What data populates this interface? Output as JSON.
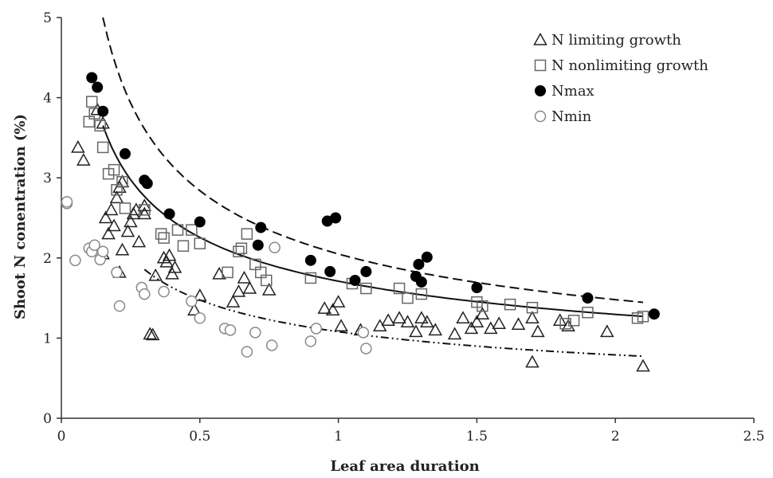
{
  "chart_data": {
    "type": "scatter",
    "title": "",
    "xlabel": "Leaf area duration",
    "ylabel": "Shoot N conentration (%)",
    "xlim": [
      0,
      2.5
    ],
    "ylim": [
      0,
      5
    ],
    "xticks": [
      0,
      0.5,
      1,
      1.5,
      2,
      2.5
    ],
    "xtick_labels": [
      "0",
      "0.5",
      "1",
      "1.5",
      "2",
      "2.5"
    ],
    "yticks": [
      0,
      1,
      2,
      3,
      4,
      5
    ],
    "ytick_labels": [
      "0",
      "1",
      "2",
      "3",
      "4",
      "5"
    ],
    "grid": false,
    "legend_position": "top-right",
    "series": [
      {
        "name": "N limiting growth",
        "marker": "triangle",
        "color": "#222222",
        "points": [
          [
            0.06,
            3.38
          ],
          [
            0.08,
            3.22
          ],
          [
            0.13,
            3.85
          ],
          [
            0.15,
            3.68
          ],
          [
            0.15,
            2.05
          ],
          [
            0.16,
            2.5
          ],
          [
            0.17,
            2.3
          ],
          [
            0.18,
            2.6
          ],
          [
            0.19,
            2.4
          ],
          [
            0.2,
            2.75
          ],
          [
            0.21,
            2.88
          ],
          [
            0.22,
            2.95
          ],
          [
            0.21,
            1.82
          ],
          [
            0.22,
            2.1
          ],
          [
            0.24,
            2.33
          ],
          [
            0.25,
            2.45
          ],
          [
            0.26,
            2.55
          ],
          [
            0.27,
            2.6
          ],
          [
            0.28,
            2.2
          ],
          [
            0.3,
            2.65
          ],
          [
            0.3,
            2.55
          ],
          [
            0.32,
            1.05
          ],
          [
            0.33,
            1.04
          ],
          [
            0.34,
            1.78
          ],
          [
            0.37,
            2.0
          ],
          [
            0.38,
            1.95
          ],
          [
            0.39,
            2.03
          ],
          [
            0.4,
            1.8
          ],
          [
            0.41,
            1.88
          ],
          [
            0.5,
            1.53
          ],
          [
            0.48,
            1.35
          ],
          [
            0.57,
            1.8
          ],
          [
            0.62,
            1.45
          ],
          [
            0.64,
            1.58
          ],
          [
            0.66,
            1.75
          ],
          [
            0.68,
            1.62
          ],
          [
            0.75,
            1.6
          ],
          [
            0.95,
            1.37
          ],
          [
            0.98,
            1.35
          ],
          [
            1.0,
            1.45
          ],
          [
            1.01,
            1.15
          ],
          [
            1.08,
            1.1
          ],
          [
            1.15,
            1.15
          ],
          [
            1.18,
            1.22
          ],
          [
            1.22,
            1.25
          ],
          [
            1.25,
            1.2
          ],
          [
            1.28,
            1.08
          ],
          [
            1.3,
            1.25
          ],
          [
            1.32,
            1.2
          ],
          [
            1.35,
            1.1
          ],
          [
            1.42,
            1.05
          ],
          [
            1.45,
            1.25
          ],
          [
            1.48,
            1.12
          ],
          [
            1.5,
            1.2
          ],
          [
            1.52,
            1.3
          ],
          [
            1.55,
            1.12
          ],
          [
            1.58,
            1.18
          ],
          [
            1.65,
            1.17
          ],
          [
            1.7,
            1.25
          ],
          [
            1.72,
            1.08
          ],
          [
            1.8,
            1.22
          ],
          [
            1.83,
            1.15
          ],
          [
            1.97,
            1.08
          ],
          [
            1.7,
            0.7
          ],
          [
            2.1,
            0.65
          ]
        ]
      },
      {
        "name": "N nonlimiting growth",
        "marker": "square",
        "color": "#666666",
        "points": [
          [
            0.1,
            3.7
          ],
          [
            0.11,
            3.95
          ],
          [
            0.12,
            3.8
          ],
          [
            0.14,
            3.65
          ],
          [
            0.15,
            3.38
          ],
          [
            0.17,
            3.05
          ],
          [
            0.19,
            3.1
          ],
          [
            0.2,
            2.85
          ],
          [
            0.22,
            2.95
          ],
          [
            0.23,
            2.62
          ],
          [
            0.3,
            2.6
          ],
          [
            0.36,
            2.3
          ],
          [
            0.37,
            2.25
          ],
          [
            0.42,
            2.35
          ],
          [
            0.44,
            2.15
          ],
          [
            0.47,
            2.35
          ],
          [
            0.5,
            2.18
          ],
          [
            0.6,
            1.82
          ],
          [
            0.64,
            2.08
          ],
          [
            0.65,
            2.12
          ],
          [
            0.67,
            2.3
          ],
          [
            0.7,
            1.92
          ],
          [
            0.72,
            1.82
          ],
          [
            0.74,
            1.72
          ],
          [
            0.9,
            1.75
          ],
          [
            1.05,
            1.68
          ],
          [
            1.1,
            1.62
          ],
          [
            1.22,
            1.62
          ],
          [
            1.25,
            1.5
          ],
          [
            1.3,
            1.55
          ],
          [
            1.5,
            1.45
          ],
          [
            1.52,
            1.4
          ],
          [
            1.62,
            1.42
          ],
          [
            1.7,
            1.38
          ],
          [
            1.82,
            1.18
          ],
          [
            1.85,
            1.22
          ],
          [
            1.9,
            1.32
          ],
          [
            2.08,
            1.25
          ],
          [
            2.1,
            1.27
          ]
        ]
      },
      {
        "name": "Nmax",
        "marker": "filled-circle",
        "color": "#000000",
        "points": [
          [
            0.11,
            4.25
          ],
          [
            0.13,
            4.13
          ],
          [
            0.15,
            3.83
          ],
          [
            0.23,
            3.3
          ],
          [
            0.3,
            2.97
          ],
          [
            0.31,
            2.93
          ],
          [
            0.39,
            2.55
          ],
          [
            0.5,
            2.45
          ],
          [
            0.71,
            2.16
          ],
          [
            0.72,
            2.38
          ],
          [
            0.9,
            1.97
          ],
          [
            0.96,
            2.46
          ],
          [
            0.97,
            1.83
          ],
          [
            0.99,
            2.5
          ],
          [
            1.06,
            1.72
          ],
          [
            1.1,
            1.83
          ],
          [
            1.28,
            1.77
          ],
          [
            1.29,
            1.92
          ],
          [
            1.3,
            1.7
          ],
          [
            1.32,
            2.01
          ],
          [
            1.5,
            1.63
          ],
          [
            1.9,
            1.5
          ],
          [
            2.14,
            1.3
          ]
        ]
      },
      {
        "name": "Nmin",
        "marker": "open-circle",
        "color": "#888888",
        "points": [
          [
            0.02,
            2.68
          ],
          [
            0.02,
            2.7
          ],
          [
            0.05,
            1.97
          ],
          [
            0.1,
            2.12
          ],
          [
            0.11,
            2.08
          ],
          [
            0.12,
            2.16
          ],
          [
            0.14,
            1.98
          ],
          [
            0.15,
            2.08
          ],
          [
            0.2,
            1.82
          ],
          [
            0.21,
            1.4
          ],
          [
            0.29,
            1.63
          ],
          [
            0.3,
            1.55
          ],
          [
            0.37,
            1.58
          ],
          [
            0.47,
            1.46
          ],
          [
            0.5,
            1.25
          ],
          [
            0.59,
            1.12
          ],
          [
            0.61,
            1.1
          ],
          [
            0.67,
            0.83
          ],
          [
            0.7,
            1.07
          ],
          [
            0.76,
            0.91
          ],
          [
            0.77,
            2.13
          ],
          [
            0.9,
            0.96
          ],
          [
            0.92,
            1.12
          ],
          [
            1.1,
            0.87
          ],
          [
            1.09,
            1.07
          ]
        ]
      }
    ],
    "fitted_curves": [
      {
        "style": "dashed",
        "x_range": [
          0.15,
          2.1
        ],
        "a": 2.05,
        "b": -0.47
      },
      {
        "style": "solid",
        "x_range": [
          0.15,
          2.1
        ],
        "a": 1.71,
        "b": -0.4
      },
      {
        "style": "dash-dot-dot",
        "x_range": [
          0.3,
          2.1
        ],
        "a": 1.08,
        "b": -0.45
      }
    ]
  }
}
